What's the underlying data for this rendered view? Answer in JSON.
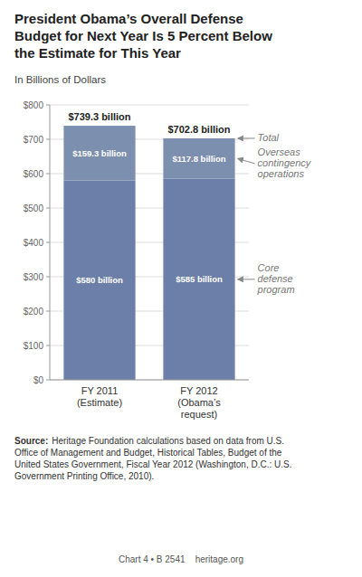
{
  "chart_data": {
    "type": "bar",
    "stacked": true,
    "title": "President Obama’s Overall Defense\nBudget for Next Year Is 5 Percent Below\nthe Estimate for This Year",
    "subtitle": "In Billions of Dollars",
    "categories": [
      "FY 2011\n(Estimate)",
      "FY 2012\n(Obama’s\nrequest)"
    ],
    "series": [
      {
        "name": "Core\ndefense\nprogram",
        "color": "#6b7fa8",
        "values": [
          580,
          585
        ],
        "value_labels": [
          "$580 billion",
          "$585 billion"
        ]
      },
      {
        "name": "Overseas\ncontingency\noperations",
        "color": "#7d8faf",
        "values": [
          159.3,
          117.8
        ],
        "value_labels": [
          "$159.3 billion",
          "$117.8 billion"
        ]
      }
    ],
    "totals": {
      "name": "Total",
      "values": [
        739.3,
        702.8
      ],
      "value_labels": [
        "$739.3 billion",
        "$702.8 billion"
      ]
    },
    "data_labels": true,
    "ylim": [
      0,
      800
    ],
    "yticks": [
      {
        "value": 0,
        "label": "$0"
      },
      {
        "value": 100,
        "label": "$100"
      },
      {
        "value": 200,
        "label": "$200"
      },
      {
        "value": 300,
        "label": "$300"
      },
      {
        "value": 400,
        "label": "$400"
      },
      {
        "value": 500,
        "label": "$500"
      },
      {
        "value": 600,
        "label": "$600"
      },
      {
        "value": 700,
        "label": "$700"
      },
      {
        "value": 800,
        "label": "$800"
      }
    ],
    "grid": true,
    "source_label": "Source:",
    "source": "Heritage Foundation calculations based on data from U.S.\nOffice of Management and Budget, Historical Tables, Budget of the\nUnited States Government, Fiscal Year 2012 (Washington, D.C.: U.S.\nGovernment Printing Office, 2010).",
    "footer": "Chart 4 • B 2541    heritage.org"
  }
}
